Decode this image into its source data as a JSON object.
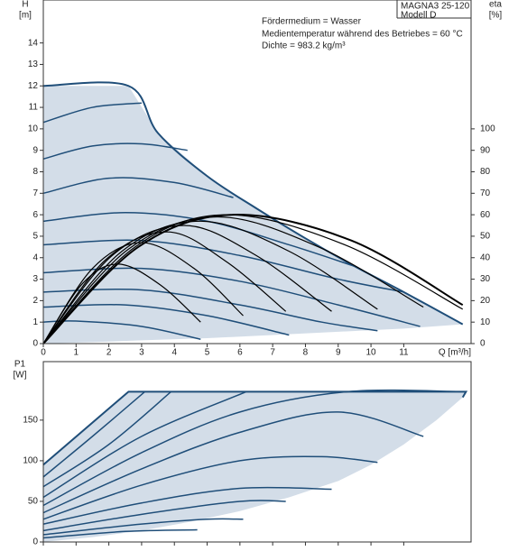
{
  "chart_data": [
    {
      "type": "line",
      "ylabel": "H",
      "yunit": "[m]",
      "y2label": "eta",
      "y2unit": "[%]",
      "xlabel": "Q [m³/h]",
      "model": [
        "MAGNA3 25-120",
        "Modell D"
      ],
      "annotations": [
        "Fördermedium = Wasser",
        "Medientemperatur während des Betriebes = 60 °C",
        "Dichte = 983.2 kg/m³"
      ],
      "xlim": [
        0,
        13
      ],
      "ylim": [
        0,
        16
      ],
      "y2lim": [
        0,
        160
      ],
      "xticks": [
        0,
        1,
        2,
        3,
        4,
        5,
        6,
        7,
        8,
        9,
        10,
        11
      ],
      "yticks": [
        0,
        1,
        2,
        3,
        4,
        5,
        6,
        7,
        8,
        9,
        10,
        11,
        12,
        13,
        14
      ],
      "y2ticks": [
        0,
        10,
        20,
        30,
        40,
        50,
        60,
        70,
        80,
        90,
        100
      ],
      "xtick_labels": true,
      "series": [
        {
          "color": "#d3dde8",
          "fill": true,
          "x": [
            0,
            2.6,
            3.5,
            5,
            6.5,
            8,
            9.5,
            11,
            12.8,
            11,
            9,
            7,
            5,
            3,
            1.5,
            0
          ],
          "values": [
            12,
            12,
            9.8,
            7.8,
            6.3,
            4.9,
            3.6,
            2.4,
            0.9,
            0.7,
            0.55,
            0.4,
            0.25,
            0.15,
            0.07,
            0
          ]
        },
        {
          "color": "#1f4e79",
          "width": 2,
          "smooth": true,
          "x": [
            0,
            2.6,
            3.5,
            5,
            6.5,
            8,
            9.5,
            11,
            12.8
          ],
          "values": [
            12,
            12,
            9.8,
            7.8,
            6.3,
            4.9,
            3.6,
            2.4,
            0.9
          ]
        },
        {
          "color": "#1f4e79",
          "width": 1.5,
          "smooth": true,
          "x": [
            0,
            1.5,
            3
          ],
          "values": [
            10.3,
            11.0,
            11.2
          ]
        },
        {
          "color": "#1f4e79",
          "width": 1.5,
          "smooth": true,
          "x": [
            0,
            1.5,
            3,
            4.4
          ],
          "values": [
            8.6,
            9.2,
            9.3,
            9.0
          ]
        },
        {
          "color": "#1f4e79",
          "width": 1.5,
          "smooth": true,
          "x": [
            0,
            2,
            4,
            5.8
          ],
          "values": [
            7.0,
            7.7,
            7.5,
            6.8
          ]
        },
        {
          "color": "#1f4e79",
          "width": 1.5,
          "smooth": true,
          "x": [
            0,
            2.5,
            5,
            7.5,
            9.5
          ],
          "values": [
            5.7,
            6.1,
            5.7,
            4.6,
            3.6
          ]
        },
        {
          "color": "#1f4e79",
          "width": 1.5,
          "smooth": true,
          "x": [
            0,
            3,
            6,
            9,
            11
          ],
          "values": [
            4.6,
            4.8,
            4.1,
            3.0,
            2.4
          ]
        },
        {
          "color": "#1f4e79",
          "width": 1.5,
          "smooth": true,
          "x": [
            0,
            3,
            6,
            9,
            11.5
          ],
          "values": [
            3.3,
            3.5,
            2.9,
            1.8,
            0.8
          ]
        },
        {
          "color": "#1f4e79",
          "width": 1.5,
          "smooth": true,
          "x": [
            0,
            3,
            6,
            8.5,
            10.2
          ],
          "values": [
            2.4,
            2.5,
            1.8,
            1.0,
            0.6
          ]
        },
        {
          "color": "#1f4e79",
          "width": 1.5,
          "smooth": true,
          "x": [
            0,
            2.5,
            5,
            7.5
          ],
          "values": [
            1.7,
            1.8,
            1.3,
            0.4
          ]
        },
        {
          "color": "#1f4e79",
          "width": 1.5,
          "smooth": true,
          "x": [
            0,
            1,
            3,
            4.8
          ],
          "values": [
            1.0,
            1.05,
            0.8,
            0.2
          ]
        },
        {
          "axis": "y2",
          "color": "#000000",
          "width": 1.2,
          "smooth": true,
          "x": [
            0,
            1.2,
            2.3,
            3.6,
            4.8
          ],
          "values": [
            0,
            28,
            37,
            27,
            10
          ]
        },
        {
          "axis": "y2",
          "color": "#000000",
          "width": 1.2,
          "smooth": true,
          "x": [
            0,
            1.5,
            3,
            4.6,
            6.1
          ],
          "values": [
            0,
            35,
            47,
            35,
            13
          ]
        },
        {
          "axis": "y2",
          "color": "#000000",
          "width": 1.2,
          "smooth": true,
          "x": [
            0,
            1.9,
            3.8,
            5.6,
            7.4
          ],
          "values": [
            0,
            39,
            52,
            38,
            15
          ]
        },
        {
          "axis": "y2",
          "color": "#000000",
          "width": 1.2,
          "smooth": true,
          "x": [
            0,
            2.1,
            4.3,
            6.5,
            8.8
          ],
          "values": [
            0,
            41,
            55,
            41,
            15
          ]
        },
        {
          "axis": "y2",
          "color": "#000000",
          "width": 1.2,
          "smooth": true,
          "x": [
            0,
            2.4,
            4.8,
            7.5,
            10.2
          ],
          "values": [
            0,
            43,
            57,
            43,
            16
          ]
        },
        {
          "axis": "y2",
          "color": "#000000",
          "width": 1.2,
          "smooth": true,
          "x": [
            0,
            2.6,
            5.3,
            8.4,
            11.6
          ],
          "values": [
            0,
            44,
            59,
            45,
            17
          ]
        },
        {
          "axis": "y2",
          "color": "#000000",
          "width": 1.2,
          "smooth": true,
          "x": [
            0,
            2.8,
            5.6,
            9.2,
            12.8
          ],
          "values": [
            0,
            45,
            60,
            46,
            16
          ]
        },
        {
          "axis": "y2",
          "color": "#000000",
          "width": 2,
          "smooth": true,
          "x": [
            0,
            2.9,
            5.8,
            9.4,
            12.8
          ],
          "values": [
            0,
            45,
            60,
            48,
            18
          ]
        }
      ]
    },
    {
      "type": "line",
      "ylabel": "P1",
      "yunit": "[W]",
      "xlim": [
        0,
        13
      ],
      "ylim": [
        0,
        222
      ],
      "xticks": [
        0,
        1,
        2,
        3,
        4,
        5,
        6,
        7,
        8,
        9,
        10,
        11
      ],
      "yticks": [
        0,
        50,
        100,
        150
      ],
      "xtick_labels": false,
      "series": [
        {
          "color": "#d3dde8",
          "fill": true,
          "x": [
            0,
            2.6,
            12.9,
            12.8,
            12,
            11,
            10,
            9,
            7.5,
            6,
            4.5,
            3,
            1.5,
            0
          ],
          "values": [
            95,
            185,
            185,
            178,
            150,
            120,
            95,
            75,
            55,
            38,
            25,
            14,
            6,
            0
          ]
        },
        {
          "color": "#1f4e79",
          "width": 2,
          "x": [
            0,
            2.6,
            12.9,
            12.8
          ],
          "values": [
            95,
            185,
            185,
            178
          ]
        },
        {
          "color": "#1f4e79",
          "width": 1.5,
          "smooth": true,
          "x": [
            0,
            1.5,
            3.1
          ],
          "values": [
            80,
            130,
            185
          ]
        },
        {
          "color": "#1f4e79",
          "width": 1.5,
          "smooth": true,
          "x": [
            0,
            2,
            3.9
          ],
          "values": [
            68,
            120,
            185
          ]
        },
        {
          "color": "#1f4e79",
          "width": 1.5,
          "smooth": true,
          "x": [
            0,
            3,
            6.2
          ],
          "values": [
            55,
            130,
            185
          ]
        },
        {
          "color": "#1f4e79",
          "width": 1.5,
          "smooth": true,
          "x": [
            0,
            3,
            6,
            9.3,
            12.8
          ],
          "values": [
            45,
            110,
            160,
            185,
            185
          ]
        },
        {
          "color": "#1f4e79",
          "width": 1.5,
          "smooth": true,
          "x": [
            0,
            3,
            6,
            9,
            11.6
          ],
          "values": [
            36,
            90,
            135,
            160,
            130
          ]
        },
        {
          "color": "#1f4e79",
          "width": 1.5,
          "smooth": true,
          "x": [
            0,
            3,
            6,
            8.5,
            10.2
          ],
          "values": [
            28,
            70,
            100,
            105,
            98
          ]
        },
        {
          "color": "#1f4e79",
          "width": 1.5,
          "smooth": true,
          "x": [
            0,
            3,
            6,
            8.8
          ],
          "values": [
            22,
            48,
            66,
            65
          ]
        },
        {
          "color": "#1f4e79",
          "width": 1.5,
          "smooth": true,
          "x": [
            0,
            3,
            6,
            7.4
          ],
          "values": [
            14,
            34,
            50,
            50
          ]
        },
        {
          "color": "#1f4e79",
          "width": 1.5,
          "smooth": true,
          "x": [
            0,
            3,
            5,
            6.1
          ],
          "values": [
            9,
            22,
            28,
            28
          ]
        },
        {
          "color": "#1f4e79",
          "width": 1.5,
          "smooth": true,
          "x": [
            0,
            2.5,
            4.7
          ],
          "values": [
            5,
            13,
            15
          ]
        }
      ]
    }
  ]
}
